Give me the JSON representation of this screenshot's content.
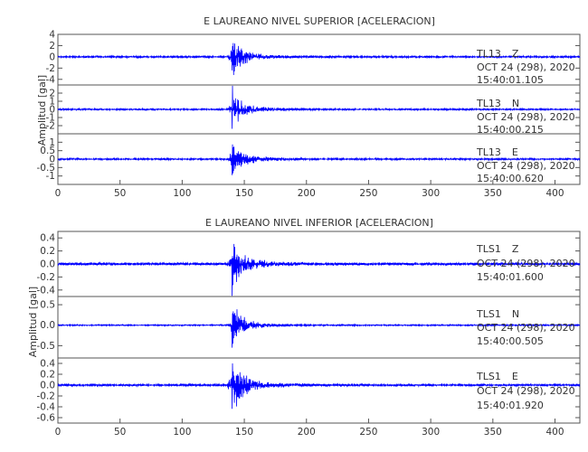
{
  "chart_data": [
    {
      "type": "line",
      "title": "E LAUREANO NIVEL SUPERIOR [ACELERACION]",
      "ylabel": "Amplitud [gal]",
      "xlim": [
        0,
        420
      ],
      "xticks": [
        0,
        50,
        100,
        150,
        200,
        250,
        300,
        350,
        400
      ],
      "line_color": "#0000ff",
      "event_time_s": 140,
      "traces": [
        {
          "station": "TL13",
          "component": "Z",
          "date": "OCT 24 (298), 2020",
          "time": "15:40:01.105",
          "ylim": [
            -5,
            4
          ],
          "yticks": [
            4,
            2,
            0,
            -2,
            -4
          ],
          "ytick_labels": [
            "4",
            "2",
            "0",
            "-2",
            "-4"
          ],
          "peak": 3.8,
          "noise": 0.2
        },
        {
          "station": "TL13",
          "component": "N",
          "date": "OCT 24 (298), 2020",
          "time": "15:40:00.215",
          "ylim": [
            -3,
            3
          ],
          "yticks": [
            2,
            1,
            0,
            -1,
            -2
          ],
          "ytick_labels": [
            "2",
            "1",
            "0",
            "-1",
            "-2"
          ],
          "peak": 2.6,
          "noise": 0.12
        },
        {
          "station": "TL13",
          "component": "E",
          "date": "OCT 24 (298), 2020",
          "time": "15:40:00.620",
          "ylim": [
            -1.5,
            1.5
          ],
          "yticks": [
            1,
            0.5,
            0,
            -0.5,
            -1
          ],
          "ytick_labels": [
            "1",
            "0.5",
            "0",
            "-0.5",
            "-1"
          ],
          "peak": 1.3,
          "noise": 0.06
        }
      ]
    },
    {
      "type": "line",
      "title": "E LAUREANO NIVEL INFERIOR [ACELERACION]",
      "ylabel": "Amplitud [gal]",
      "xlim": [
        0,
        420
      ],
      "xticks": [
        0,
        50,
        100,
        150,
        200,
        250,
        300,
        350,
        400
      ],
      "line_color": "#0000ff",
      "event_time_s": 140,
      "traces": [
        {
          "station": "TLS1",
          "component": "Z",
          "date": "OCT 24 (298), 2020",
          "time": "15:40:01.600",
          "ylim": [
            -0.5,
            0.5
          ],
          "yticks": [
            0.4,
            0.2,
            0,
            -0.2,
            -0.4
          ],
          "ytick_labels": [
            "0.4",
            "0.2",
            "0.0",
            "-0.2",
            "-0.4"
          ],
          "peak": 0.46,
          "noise": 0.025
        },
        {
          "station": "TLS1",
          "component": "N",
          "date": "OCT 24 (298), 2020",
          "time": "15:40:00.505",
          "ylim": [
            -0.8,
            0.7
          ],
          "yticks": [
            0.5,
            0,
            -0.5
          ],
          "ytick_labels": [
            "0.5",
            "0.0",
            "-0.5"
          ],
          "peak": 0.55,
          "noise": 0.02
        },
        {
          "station": "TLS1",
          "component": "E",
          "date": "OCT 24 (298), 2020",
          "time": "15:40:01.920",
          "ylim": [
            -0.7,
            0.5
          ],
          "yticks": [
            0.4,
            0.2,
            0,
            -0.2,
            -0.4,
            -0.6
          ],
          "ytick_labels": [
            "0.4",
            "0.2",
            "0.0",
            "-0.2",
            "-0.4",
            "-0.6"
          ],
          "peak": 0.55,
          "noise": 0.025
        }
      ]
    }
  ]
}
